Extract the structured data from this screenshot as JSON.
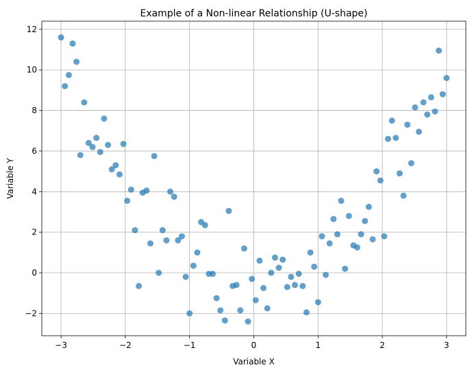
{
  "chart_data": {
    "type": "scatter",
    "title": "Example of a Non-linear Relationship (U-shape)",
    "xlabel": "Variable X",
    "ylabel": "Variable Y",
    "xlim": [
      -3.3,
      3.3
    ],
    "ylim": [
      -3.1,
      12.4
    ],
    "xticks": [
      -3,
      -2,
      -1,
      0,
      1,
      2,
      3
    ],
    "xtick_labels": [
      "−3",
      "−2",
      "−1",
      "0",
      "1",
      "2",
      "3"
    ],
    "yticks": [
      -2,
      0,
      2,
      4,
      6,
      8,
      10,
      12
    ],
    "ytick_labels": [
      "−2",
      "0",
      "2",
      "4",
      "6",
      "8",
      "10",
      "12"
    ],
    "grid": true,
    "legend": false,
    "color": "#1f77b4",
    "opacity": 0.7,
    "series": [
      {
        "x": [
          -3.0,
          -2.94,
          -2.88,
          -2.82,
          -2.76,
          -2.7,
          -2.64,
          -2.57,
          -2.51,
          -2.45,
          -2.39,
          -2.33,
          -2.27,
          -2.21,
          -2.15,
          -2.09,
          -2.03,
          -1.97,
          -1.91,
          -1.85,
          -1.79,
          -1.73,
          -1.67,
          -1.61,
          -1.55,
          -1.48,
          -1.42,
          -1.36,
          -1.3,
          -1.24,
          -1.18,
          -1.12,
          -1.06,
          -1.0,
          -0.94,
          -0.88,
          -0.82,
          -0.76,
          -0.7,
          -0.64,
          -0.58,
          -0.52,
          -0.45,
          -0.39,
          -0.33,
          -0.27,
          -0.21,
          -0.15,
          -0.09,
          -0.03,
          0.03,
          0.09,
          0.15,
          0.21,
          0.27,
          0.33,
          0.39,
          0.45,
          0.52,
          0.58,
          0.64,
          0.7,
          0.76,
          0.82,
          0.88,
          0.94,
          1.0,
          1.06,
          1.12,
          1.18,
          1.24,
          1.3,
          1.36,
          1.42,
          1.48,
          1.55,
          1.61,
          1.67,
          1.73,
          1.79,
          1.85,
          1.91,
          1.97,
          2.03,
          2.09,
          2.15,
          2.21,
          2.27,
          2.33,
          2.39,
          2.45,
          2.51,
          2.57,
          2.64,
          2.7,
          2.76,
          2.82,
          2.88,
          2.94,
          3.0
        ],
        "y": [
          11.6,
          9.2,
          9.75,
          11.3,
          10.4,
          5.8,
          8.4,
          6.4,
          6.2,
          6.65,
          5.95,
          7.6,
          6.3,
          5.1,
          5.3,
          4.85,
          6.35,
          3.55,
          4.1,
          2.1,
          -0.65,
          3.95,
          4.05,
          1.45,
          5.75,
          0.0,
          2.1,
          1.6,
          4.0,
          3.75,
          1.6,
          1.8,
          -0.2,
          -2.0,
          0.35,
          1.0,
          2.5,
          2.35,
          -0.05,
          -0.05,
          -1.25,
          -1.85,
          -2.35,
          3.05,
          -0.65,
          -0.6,
          -1.85,
          1.2,
          -2.4,
          -0.3,
          -1.35,
          0.6,
          -0.75,
          -1.75,
          0.0,
          0.75,
          0.25,
          0.65,
          -0.7,
          -0.2,
          -0.6,
          -0.05,
          -0.65,
          -1.95,
          1.0,
          0.3,
          -1.45,
          1.8,
          -0.1,
          1.45,
          2.65,
          1.9,
          3.55,
          0.2,
          2.8,
          1.35,
          1.25,
          1.9,
          2.55,
          3.25,
          1.65,
          5.0,
          4.55,
          1.8,
          6.6,
          7.5,
          6.65,
          4.9,
          3.8,
          7.3,
          5.4,
          8.15,
          6.95,
          8.4,
          7.8,
          8.65,
          7.95,
          10.95,
          8.8,
          9.6
        ]
      }
    ]
  }
}
